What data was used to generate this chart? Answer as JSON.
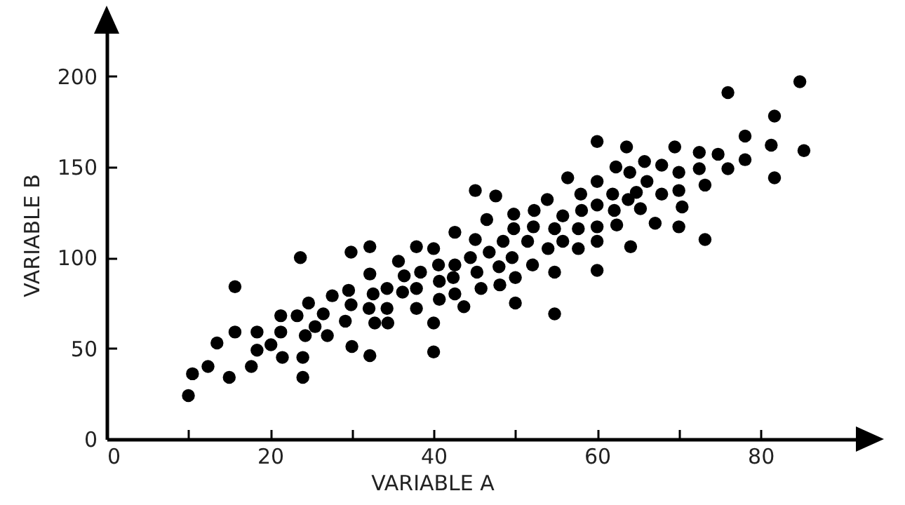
{
  "chart_data": {
    "type": "scatter",
    "xlabel": "VARIABLE A",
    "ylabel": "VARIABLE B",
    "xlim": [
      0,
      92
    ],
    "ylim": [
      0,
      225
    ],
    "xticks": [
      0,
      {
        "value": 10,
        "label": null
      },
      20,
      {
        "value": 30,
        "label": null
      },
      40,
      {
        "value": 50,
        "label": null
      },
      60,
      {
        "value": 70,
        "label": null
      },
      80
    ],
    "yticks": [
      0,
      50,
      100,
      150,
      200
    ],
    "grid": false,
    "marker": "circle",
    "series": [
      {
        "color": "#000000",
        "x": [
          10,
          10.5,
          12.4,
          13.5,
          15,
          15.7,
          15.7,
          17.7,
          18.4,
          18.4,
          20.1,
          21.3,
          21.3,
          21.5,
          23.3,
          23.7,
          24,
          24,
          24.3,
          24.7,
          25.5,
          26.5,
          27,
          27.6,
          29.2,
          29.6,
          29.9,
          29.9,
          30,
          32.2,
          32.2,
          32.1,
          32.2,
          32.6,
          32.8,
          34.3,
          34.3,
          34.4,
          35.7,
          36.2,
          36.4,
          37.9,
          37.9,
          37.9,
          38.4,
          40,
          40,
          40,
          40.6,
          40.7,
          40.7,
          42.4,
          42.6,
          42.6,
          42.6,
          43.7,
          44.5,
          45.1,
          45.1,
          45.3,
          45.8,
          46.5,
          46.8,
          47.6,
          48,
          48.1,
          48.5,
          49.8,
          49.8,
          49.6,
          50,
          50,
          51.5,
          52.3,
          52.2,
          52.1,
          53.9,
          54,
          54.8,
          54.8,
          54.8,
          55.8,
          55.8,
          56.4,
          57.7,
          57.7,
          58,
          58.1,
          60,
          60,
          60,
          60,
          60,
          60,
          61.9,
          62.1,
          62.3,
          62.4,
          63.6,
          63.8,
          64,
          64.1,
          64.8,
          65.3,
          65.8,
          66.1,
          67.1,
          67.9,
          67.9,
          69.5,
          70,
          70,
          70.4,
          70,
          72.5,
          72.5,
          73.2,
          73.2,
          74.8,
          76,
          76,
          78.1,
          78.1,
          81.3,
          81.7,
          81.7,
          84.8,
          85.3
        ],
        "values": [
          24,
          36,
          40,
          53,
          34,
          84,
          59,
          40,
          59,
          49,
          52,
          68,
          59,
          45,
          68,
          100,
          45,
          34,
          57,
          75,
          62,
          69,
          57,
          79,
          65,
          82,
          103,
          74,
          51,
          106,
          91,
          72,
          46,
          80,
          64,
          83,
          72,
          64,
          98,
          81,
          90,
          106,
          83,
          72,
          92,
          105,
          64,
          48,
          96,
          87,
          77,
          89,
          114,
          96,
          80,
          73,
          100,
          137,
          110,
          92,
          83,
          121,
          103,
          134,
          95,
          85,
          109,
          124,
          116,
          100,
          89,
          75,
          109,
          126,
          117,
          96,
          132,
          105,
          116,
          92,
          69,
          123,
          109,
          144,
          116,
          105,
          135,
          126,
          164,
          142,
          129,
          117,
          109,
          93,
          135,
          126,
          150,
          118,
          161,
          132,
          147,
          106,
          136,
          127,
          153,
          142,
          119,
          151,
          135,
          161,
          147,
          137,
          128,
          117,
          158,
          149,
          140,
          110,
          157,
          191,
          149,
          167,
          154,
          162,
          178,
          144,
          197,
          159
        ]
      }
    ]
  }
}
